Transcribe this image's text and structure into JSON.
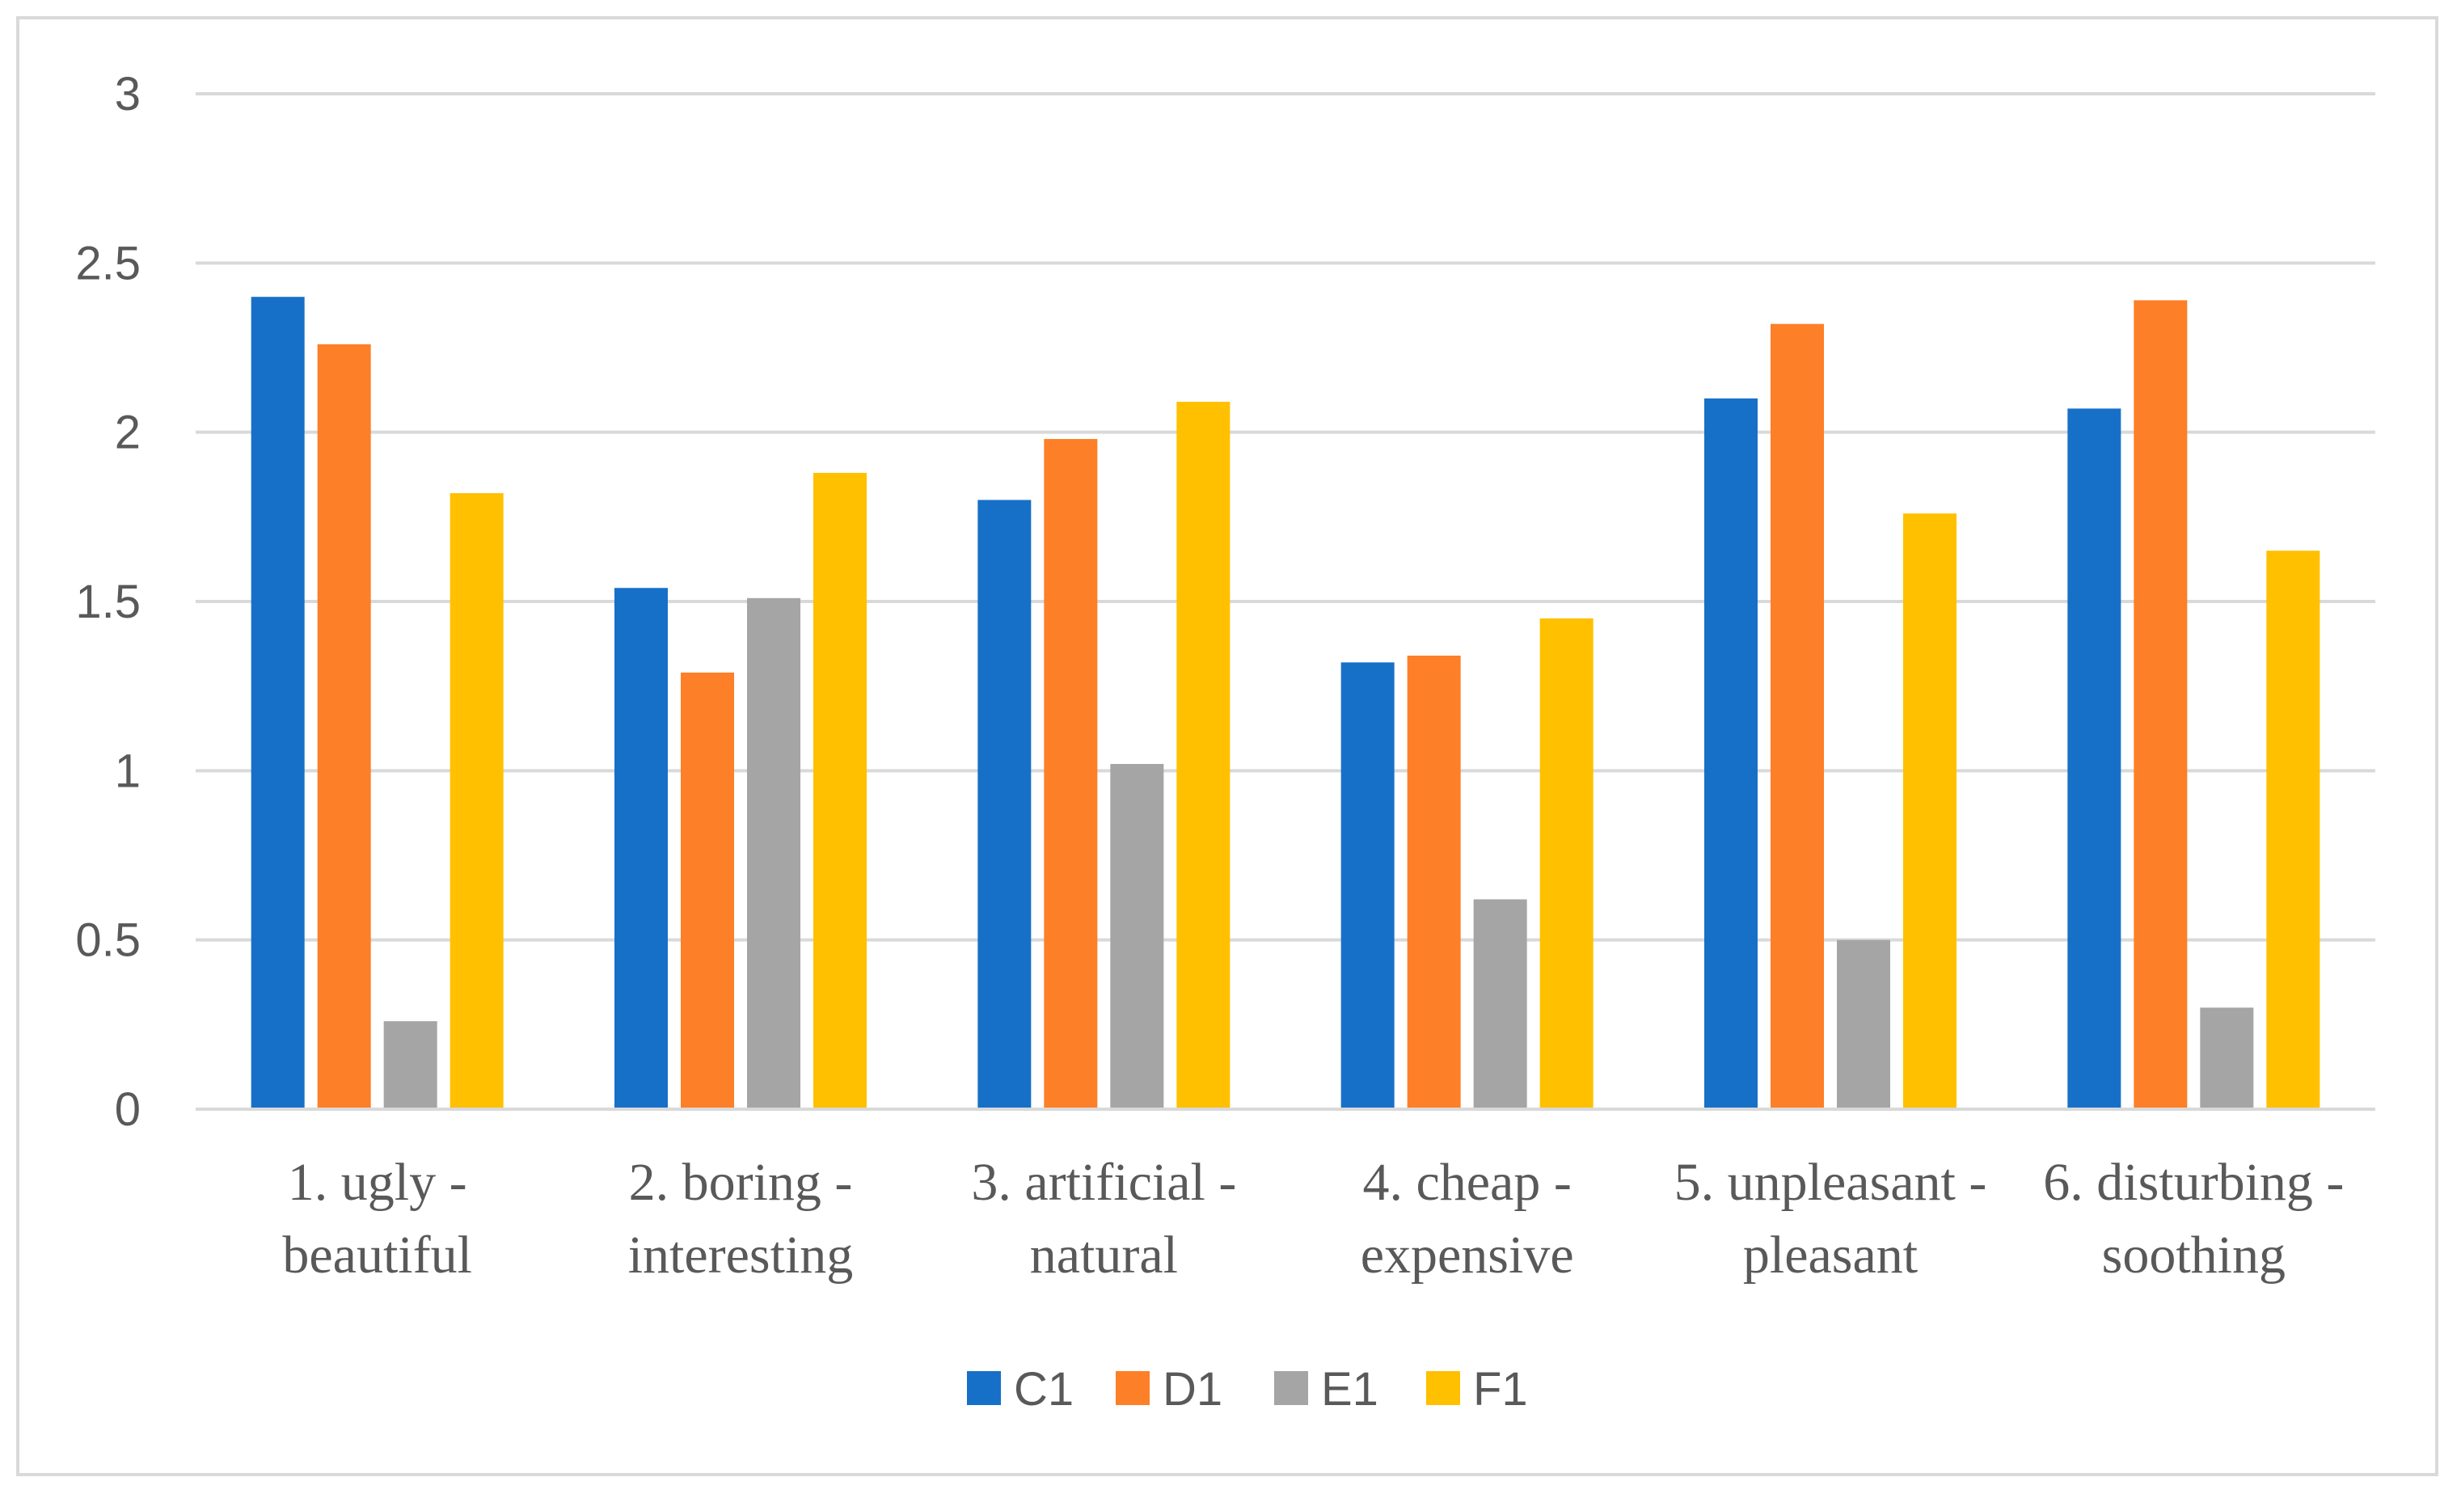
{
  "chart_data": {
    "type": "bar",
    "title": "",
    "xlabel": "",
    "ylabel": "",
    "ylim": [
      0,
      3
    ],
    "yticks": [
      "0",
      "0.5",
      "1",
      "1.5",
      "2",
      "2.5",
      "3"
    ],
    "grid": true,
    "legend_position": "bottom",
    "categories": [
      [
        "1. ugly -",
        "beautiful"
      ],
      [
        "2. boring -",
        "interesting"
      ],
      [
        "3. artificial -",
        "natural"
      ],
      [
        "4. cheap -",
        "expensive"
      ],
      [
        "5. unpleasant -",
        "pleasant"
      ],
      [
        "6. disturbing  -",
        "soothing"
      ]
    ],
    "series": [
      {
        "name": "C1",
        "color": "#1770c8",
        "values": [
          2.4,
          1.54,
          1.8,
          1.32,
          2.1,
          2.07
        ]
      },
      {
        "name": "D1",
        "color": "#fd7f27",
        "values": [
          2.26,
          1.29,
          1.98,
          1.34,
          2.32,
          2.39
        ]
      },
      {
        "name": "E1",
        "color": "#a5a5a5",
        "values": [
          0.26,
          1.51,
          1.02,
          0.62,
          0.5,
          0.3
        ]
      },
      {
        "name": "F1",
        "color": "#ffc000",
        "values": [
          1.82,
          1.88,
          2.09,
          1.45,
          1.76,
          1.65
        ]
      }
    ]
  }
}
